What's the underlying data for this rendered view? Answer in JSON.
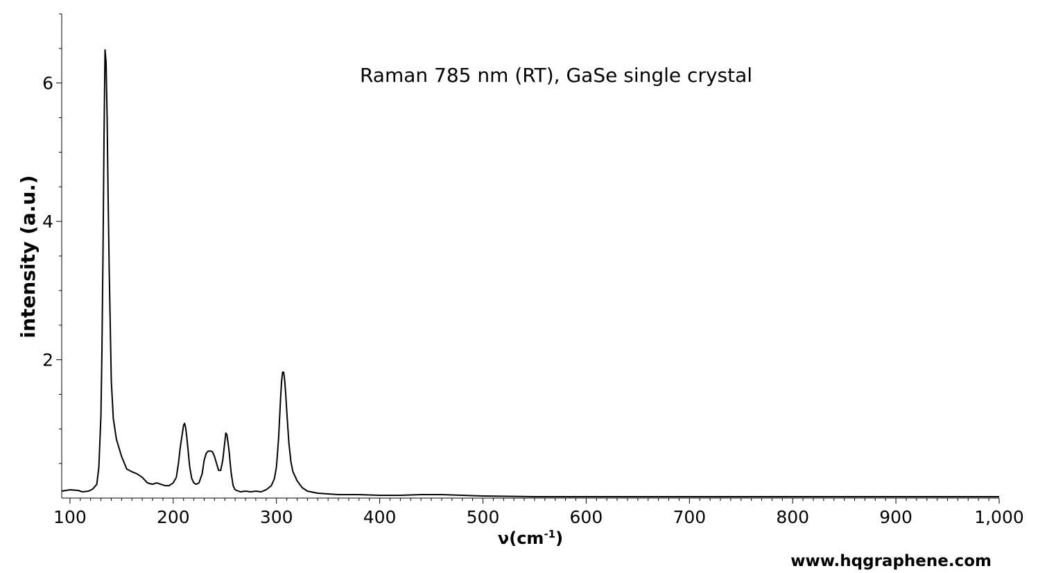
{
  "chart_data": {
    "type": "line",
    "title": "Raman 785 nm (RT), GaSe single crystal",
    "xlabel": "ν(cm",
    "xlabel_sup": "-1",
    "xlabel_suffix": ")",
    "ylabel": "intensity (a.u.)",
    "xlim": [
      92,
      1000
    ],
    "ylim": [
      0,
      7.0
    ],
    "x_ticks": [
      100,
      200,
      300,
      400,
      500,
      600,
      700,
      800,
      900,
      1000
    ],
    "x_tick_labels": [
      "100",
      "200",
      "300",
      "400",
      "500",
      "600",
      "700",
      "800",
      "900",
      "1,000"
    ],
    "y_ticks": [
      2,
      4,
      6
    ],
    "y_tick_labels": [
      "2",
      "4",
      "6"
    ],
    "grid": false,
    "legend": "none",
    "series": [
      {
        "color": "#000000",
        "x": [
          92,
          100,
          108,
          112,
          118,
          122,
          126,
          128,
          130,
          131,
          132,
          133,
          134,
          135,
          136,
          137,
          138,
          140,
          142,
          145,
          150,
          155,
          160,
          165,
          170,
          175,
          180,
          184,
          188,
          192,
          196,
          200,
          203,
          205,
          207,
          209,
          210,
          211,
          212,
          213,
          214,
          216,
          218,
          220,
          222,
          225,
          228,
          230,
          232,
          234,
          236,
          238,
          240,
          242,
          244,
          246,
          248,
          250,
          251,
          252,
          254,
          256,
          258,
          260,
          265,
          270,
          275,
          280,
          285,
          290,
          295,
          298,
          300,
          302,
          303,
          304,
          305,
          306,
          307,
          308,
          309,
          310,
          312,
          314,
          316,
          320,
          325,
          330,
          340,
          360,
          380,
          400,
          420,
          440,
          460,
          480,
          500,
          550,
          590,
          600,
          650,
          700,
          750,
          800,
          850,
          900,
          950,
          1000
        ],
        "y": [
          0.1,
          0.12,
          0.11,
          0.09,
          0.1,
          0.13,
          0.2,
          0.45,
          1.2,
          2.2,
          3.6,
          5.2,
          6.48,
          6.3,
          5.5,
          4.3,
          3.3,
          1.7,
          1.15,
          0.85,
          0.6,
          0.42,
          0.38,
          0.35,
          0.3,
          0.22,
          0.2,
          0.22,
          0.2,
          0.18,
          0.18,
          0.22,
          0.3,
          0.5,
          0.75,
          0.95,
          1.05,
          1.08,
          1.02,
          0.9,
          0.75,
          0.45,
          0.28,
          0.22,
          0.2,
          0.22,
          0.35,
          0.55,
          0.65,
          0.68,
          0.68,
          0.67,
          0.6,
          0.5,
          0.4,
          0.4,
          0.55,
          0.82,
          0.94,
          0.92,
          0.7,
          0.38,
          0.18,
          0.12,
          0.09,
          0.1,
          0.09,
          0.1,
          0.09,
          0.12,
          0.18,
          0.28,
          0.45,
          0.85,
          1.15,
          1.45,
          1.7,
          1.82,
          1.82,
          1.7,
          1.5,
          1.25,
          0.8,
          0.52,
          0.38,
          0.25,
          0.15,
          0.1,
          0.07,
          0.05,
          0.05,
          0.04,
          0.04,
          0.05,
          0.05,
          0.04,
          0.03,
          0.02,
          0.02,
          0.02,
          0.02,
          0.02,
          0.02,
          0.02,
          0.02,
          0.02,
          0.02,
          0.02
        ]
      }
    ]
  },
  "watermark": "www.hqgraphene.com"
}
